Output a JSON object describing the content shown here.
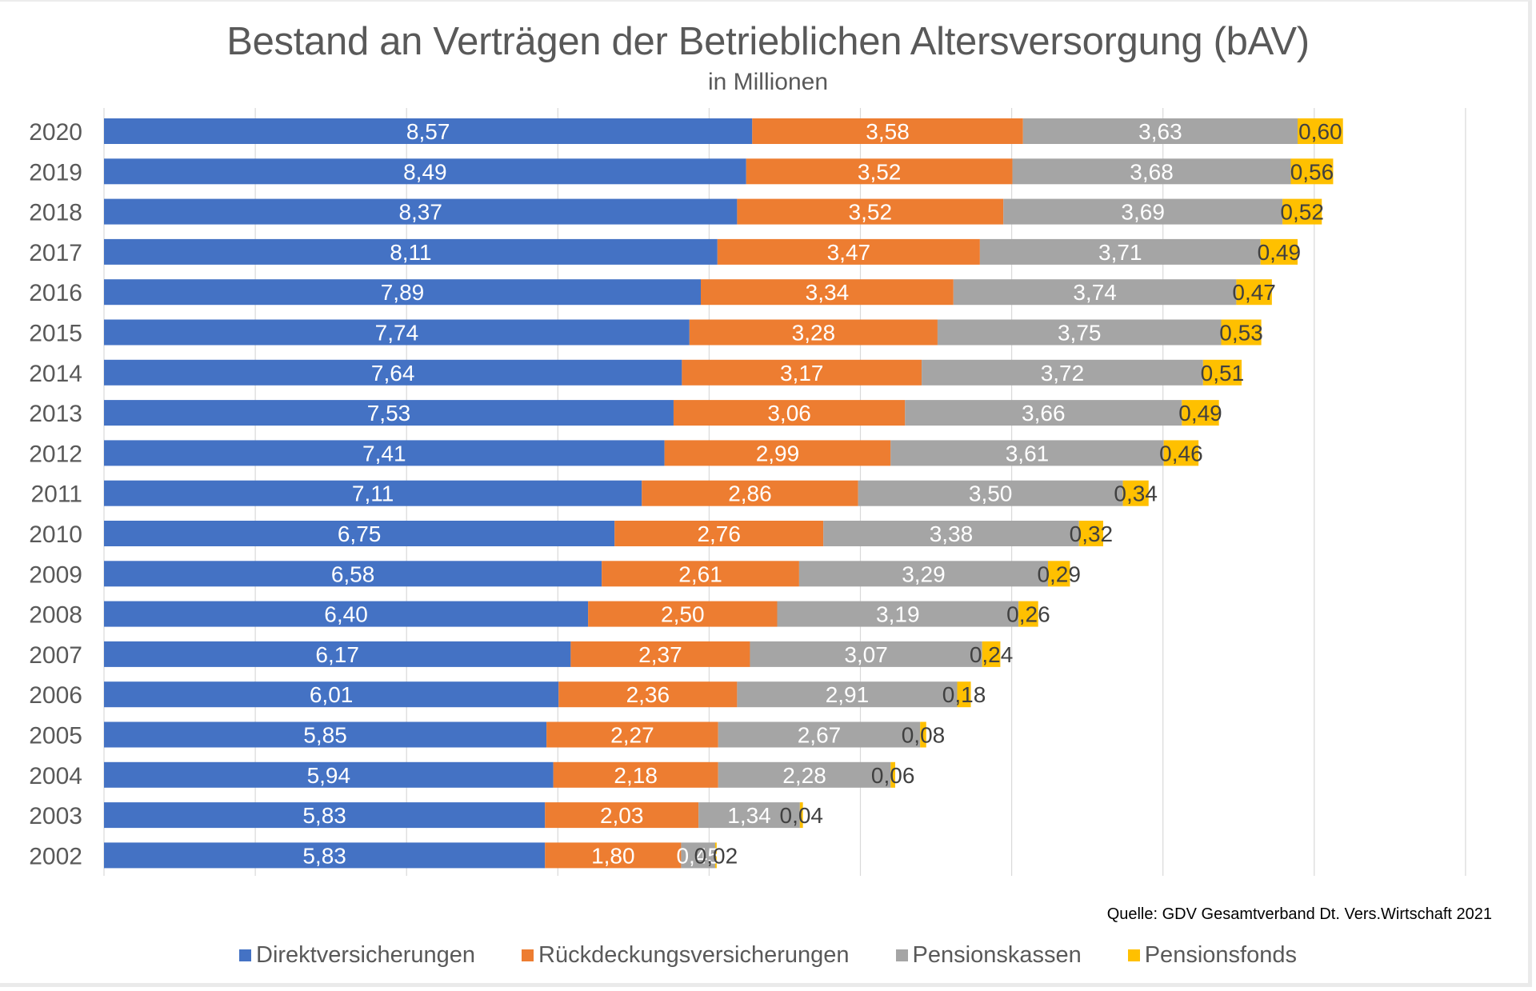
{
  "chart_data": {
    "type": "bar",
    "orientation": "horizontal",
    "stacked": true,
    "title": "Bestand an Verträgen der Betrieblichen Altersversorgung (bAV)",
    "subtitle": "in Millionen",
    "xlabel": "",
    "ylabel": "",
    "xlim": [
      0,
      18
    ],
    "grid": true,
    "legend_position": "bottom",
    "categories": [
      "2020",
      "2019",
      "2018",
      "2017",
      "2016",
      "2015",
      "2014",
      "2013",
      "2012",
      "2011",
      "2010",
      "2009",
      "2008",
      "2007",
      "2006",
      "2005",
      "2004",
      "2003",
      "2002"
    ],
    "series": [
      {
        "name": "Direktversicherungen",
        "color": "#4472C4",
        "label_color": "#ffffff",
        "values": [
          8.57,
          8.49,
          8.37,
          8.11,
          7.89,
          7.74,
          7.64,
          7.53,
          7.41,
          7.11,
          6.75,
          6.58,
          6.4,
          6.17,
          6.01,
          5.85,
          5.94,
          5.83,
          5.83
        ],
        "labels": [
          "8,57",
          "8,49",
          "8,37",
          "8,11",
          "7,89",
          "7,74",
          "7,64",
          "7,53",
          "7,41",
          "7,11",
          "6,75",
          "6,58",
          "6,40",
          "6,17",
          "6,01",
          "5,85",
          "5,94",
          "5,83",
          "5,83"
        ]
      },
      {
        "name": "Rückdeckungsversicherungen",
        "color": "#ED7D31",
        "label_color": "#ffffff",
        "values": [
          3.58,
          3.52,
          3.52,
          3.47,
          3.34,
          3.28,
          3.17,
          3.06,
          2.99,
          2.86,
          2.76,
          2.61,
          2.5,
          2.37,
          2.36,
          2.27,
          2.18,
          2.03,
          1.8
        ],
        "labels": [
          "3,58",
          "3,52",
          "3,52",
          "3,47",
          "3,34",
          "3,28",
          "3,17",
          "3,06",
          "2,99",
          "2,86",
          "2,76",
          "2,61",
          "2,50",
          "2,37",
          "2,36",
          "2,27",
          "2,18",
          "2,03",
          "1,80"
        ]
      },
      {
        "name": "Pensionskassen",
        "color": "#A5A5A5",
        "label_color": "#ffffff",
        "values": [
          3.63,
          3.68,
          3.69,
          3.71,
          3.74,
          3.75,
          3.72,
          3.66,
          3.61,
          3.5,
          3.38,
          3.29,
          3.19,
          3.07,
          2.91,
          2.67,
          2.28,
          1.34,
          0.45
        ],
        "labels": [
          "3,63",
          "3,68",
          "3,69",
          "3,71",
          "3,74",
          "3,75",
          "3,72",
          "3,66",
          "3,61",
          "3,50",
          "3,38",
          "3,29",
          "3,19",
          "3,07",
          "2,91",
          "2,67",
          "2,28",
          "1,34",
          "0,45"
        ]
      },
      {
        "name": "Pensionsfonds",
        "color": "#FFC000",
        "label_color": "#404040",
        "values": [
          0.6,
          0.56,
          0.52,
          0.49,
          0.47,
          0.53,
          0.51,
          0.49,
          0.46,
          0.34,
          0.32,
          0.29,
          0.26,
          0.24,
          0.18,
          0.08,
          0.06,
          0.04,
          0.02
        ],
        "labels": [
          "0,60",
          "0,56",
          "0,52",
          "0,49",
          "0,47",
          "0,53",
          "0,51",
          "0,49",
          "0,46",
          "0,34",
          "0,32",
          "0,29",
          "0,26",
          "0,24",
          "0,18",
          "0,08",
          "0,06",
          "0,04",
          "0,02"
        ]
      }
    ],
    "annotations": [
      "Quelle: GDV Gesamtverband Dt. Vers.Wirtschaft 2021"
    ]
  },
  "source_note": "Quelle: GDV Gesamtverband Dt. Vers.Wirtschaft 2021"
}
